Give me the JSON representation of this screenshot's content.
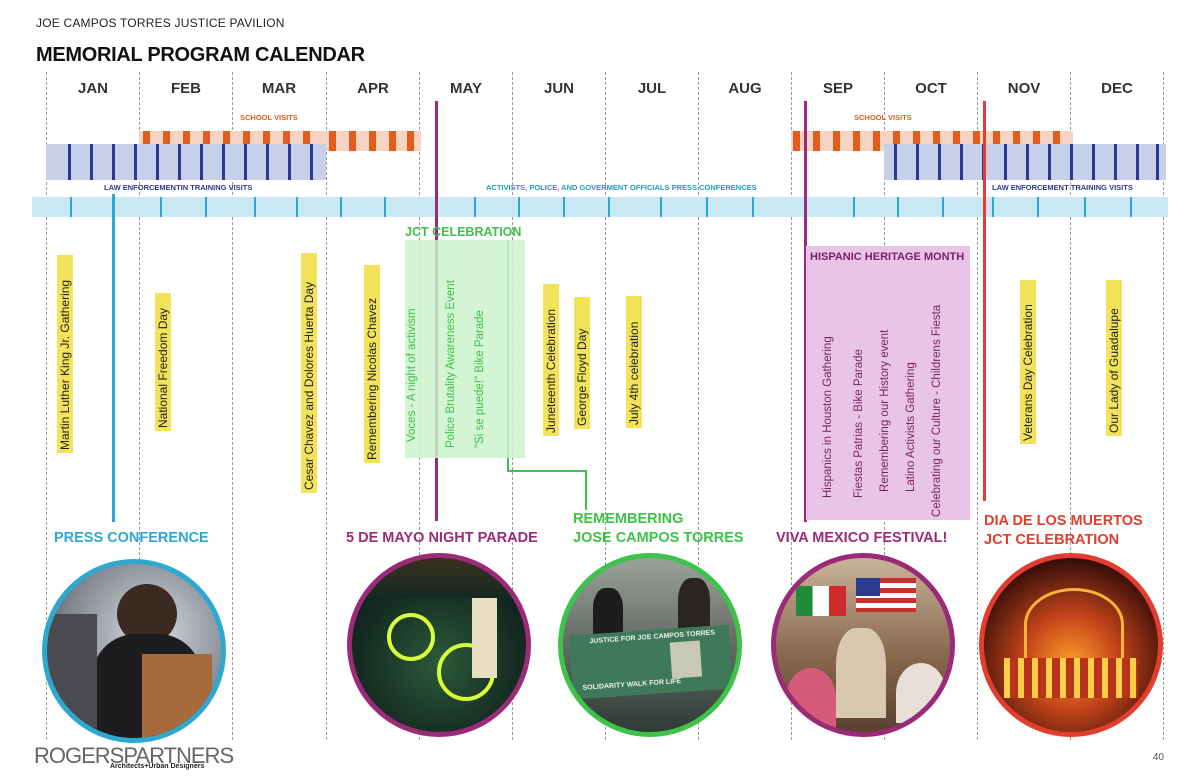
{
  "header": {
    "subtitle": "JOE CAMPOS TORRES JUSTICE PAVILION",
    "title": "MEMORIAL PROGRAM CALENDAR"
  },
  "months": [
    "JAN",
    "FEB",
    "MAR",
    "APR",
    "MAY",
    "JUN",
    "JUL",
    "AUG",
    "SEP",
    "OCT",
    "NOV",
    "DEC"
  ],
  "bands": {
    "school_visits_1": "SCHOOL VISITS",
    "school_visits_2": "SCHOOL VISITS",
    "law_1": "LAW ENFORCEMENTIN TRAINING VISITS",
    "press": "ACTIVISTS, POLICE, AND GOVERMENT OFFICIALS PRESS CONFERENCES",
    "law_2": "LAW ENFORCEMENT TRAINING VISITS"
  },
  "events": {
    "mlk": "Martin Luther King Jr. Gathering",
    "freedom": "National Freedom Day",
    "cesar": "Cesar Chavez and Dolores Huerta Day",
    "nicolas": "Remembering Nicolas Chavez",
    "jct_title": "JCT CELEBRATION",
    "voces": "Voces - A night of activism",
    "police_aw": "Police Brutality Awareness Event",
    "bike": "\"Si se puede!\" Bike Parade",
    "juneteenth": "Juneteenth Celebration",
    "floyd": "George Floyd Day",
    "july4": "July 4th celebration",
    "hhm_title": "HISPANIC HERITAGE MONTH",
    "hispanics": "Hispanics in Houston Gathering",
    "fiestas": "Fiestas Patrias - Bike Parade",
    "history": "Remembering our History event",
    "latino": "Latino Activists Gathering",
    "culture": "Celebrating our Culture - Childrens Fiesta",
    "veterans": "Veterans Day Celebration",
    "guadalupe": "Our Lady of Guadalupe"
  },
  "highlights": {
    "press_conf": "PRESS CONFERENCE",
    "mayo_parade": "5 DE MAYO NIGHT PARADE",
    "remembering_1": "REMEMBERING",
    "remembering_2": "JOSE CAMPOS TORRES",
    "viva": "VIVA MEXICO FESTIVAL!",
    "muertos_1": "DIA DE LOS MUERTOS",
    "muertos_2": "JCT CELEBRATION",
    "photo_sign": "JUSTICE FOR JOE CAMPOS TORRES",
    "photo_banner": "SOLIDARITY WALK FOR LIFE"
  },
  "colors": {
    "press": "#2fa8cf",
    "mayo": "#9b2a78",
    "remembering": "#3dc24a",
    "muertos": "#e23d2e",
    "orange": "#e45b1e",
    "navy": "#2a3b8f"
  },
  "footer": {
    "logo": "ROGERSPARTNERS",
    "logo_sub": "Architects+Urban Designers",
    "page": "40"
  }
}
